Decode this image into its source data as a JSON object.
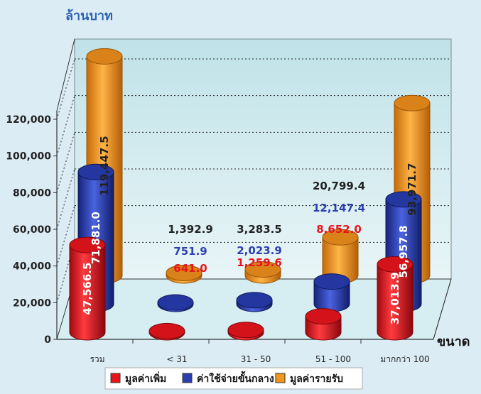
{
  "chart_data": {
    "type": "bar",
    "title": "",
    "ylabel": "ล้านบาท",
    "xlabel": "ขนาด",
    "categories": [
      "รวม",
      "< 31",
      "31 - 50",
      "51 - 100",
      "มากกว่า 100"
    ],
    "series": [
      {
        "name": "มูลค่าเพิ่ม",
        "color": "#e8141c",
        "values": [
          47566.5,
          641.0,
          1259.6,
          8652.0,
          37013.9
        ],
        "labels": [
          "47,566.5",
          "641.0",
          "1,259.6",
          "8,652.0",
          "37,013.9"
        ]
      },
      {
        "name": "ค่าใช้จ่ายขั้นกลาง",
        "color": "#2b3fb0",
        "values": [
          71881.0,
          751.9,
          2023.9,
          12147.4,
          56957.8
        ],
        "labels": [
          "71,881.0",
          "751.9",
          "2,023.9",
          "12,147.4",
          "56,957.8"
        ]
      },
      {
        "name": "มูลค่ารายรับ",
        "color": "#f2961c",
        "values": [
          119447.5,
          1392.9,
          3283.5,
          20799.4,
          93971.7
        ],
        "labels": [
          "119,447.5",
          "1,392.9",
          "3,283.5",
          "20,799.4",
          "93,971.7"
        ]
      }
    ],
    "yticks": [
      "0",
      "20,000",
      "40,000",
      "60,000",
      "80,000",
      "100,000",
      "120,000"
    ],
    "ylim": [
      0,
      120000
    ],
    "grid": true,
    "legend": "bottom",
    "value_label_colors": [
      "#e8141c",
      "#2b3fb0",
      "#222222"
    ]
  }
}
